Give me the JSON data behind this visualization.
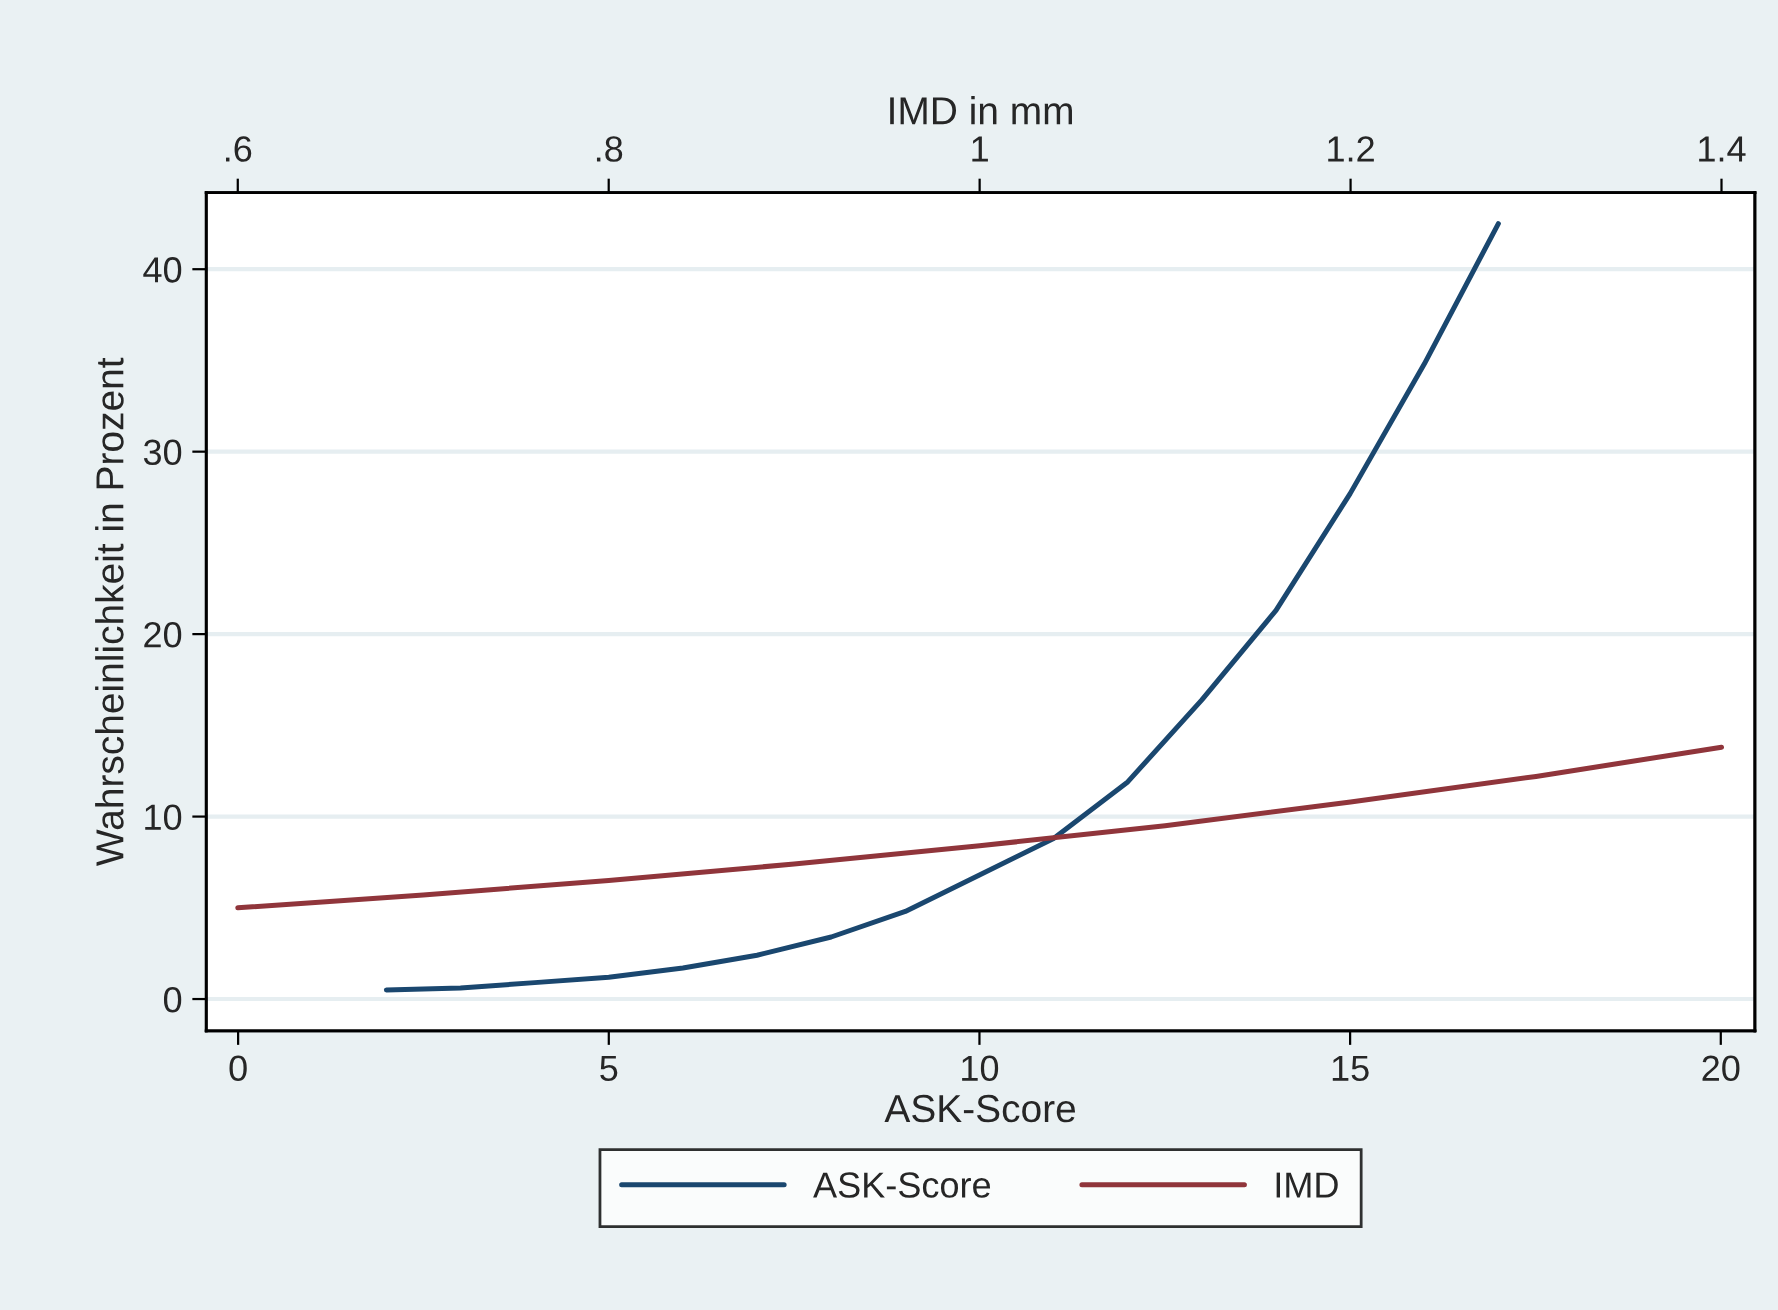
{
  "chart_data": {
    "type": "line",
    "xlabel": "ASK-Score",
    "ylabel": "Wahrscheinlichkeit in Prozent",
    "x2label": "IMD in mm",
    "xlim": [
      -0.43,
      20.46
    ],
    "xticks": [
      0,
      5,
      10,
      15,
      20
    ],
    "x2lim": [
      0.583,
      1.418
    ],
    "x2ticks": [
      {
        "value": 0.6,
        "label": ".6"
      },
      {
        "value": 0.8,
        "label": ".8"
      },
      {
        "value": 1,
        "label": "1"
      },
      {
        "value": 1.2,
        "label": "1.2"
      },
      {
        "value": 1.4,
        "label": "1.4"
      }
    ],
    "ylim": [
      -1.75,
      44.2
    ],
    "yticks": [
      0,
      10,
      20,
      30,
      40
    ],
    "grid": "y",
    "legend": "bottom",
    "line_style": "solid",
    "marker": "none",
    "series": [
      {
        "name": "ASK-Score",
        "color": "#1a476f",
        "x": [
          2,
          3,
          4,
          5,
          6,
          7,
          8,
          9,
          10,
          11,
          12,
          13,
          14,
          15,
          16,
          17
        ],
        "values": [
          0.5,
          0.6,
          0.9,
          1.2,
          1.7,
          2.4,
          3.4,
          4.8,
          6.8,
          8.8,
          11.9,
          16.4,
          21.3,
          27.7,
          34.8,
          42.5
        ]
      },
      {
        "name": "IMD",
        "color": "#90353b",
        "axis": "x2",
        "x": [
          0.6,
          0.7,
          0.8,
          0.9,
          1.0,
          1.1,
          1.2,
          1.3,
          1.4
        ],
        "values": [
          5.0,
          5.7,
          6.5,
          7.4,
          8.4,
          9.5,
          10.8,
          12.2,
          13.8
        ]
      }
    ]
  }
}
